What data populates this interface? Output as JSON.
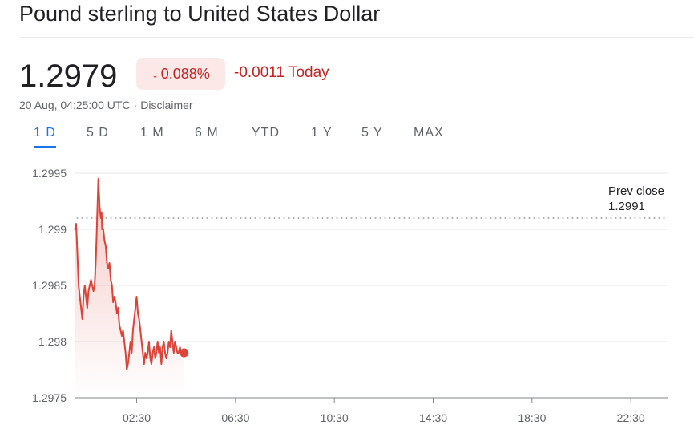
{
  "header": {
    "title": "Pound sterling to United States Dollar"
  },
  "quote": {
    "price": "1.2979",
    "change_percent": "0.088%",
    "change_abs": "-0.0011",
    "change_period": "Today",
    "timestamp": "20 Aug, 04:25:00 UTC",
    "separator": "·",
    "disclaimer": "Disclaimer",
    "down_arrow": "↓"
  },
  "tabs": [
    {
      "label": "1 D",
      "active": true
    },
    {
      "label": "5 D",
      "active": false
    },
    {
      "label": "1 M",
      "active": false
    },
    {
      "label": "6 M",
      "active": false
    },
    {
      "label": "YTD",
      "active": false
    },
    {
      "label": "1 Y",
      "active": false
    },
    {
      "label": "5 Y",
      "active": false
    },
    {
      "label": "MAX",
      "active": false
    }
  ],
  "colors": {
    "line": "#db4437",
    "fill": "#fce8e6",
    "active_tab": "#1a73e8",
    "negative": "#c5221f"
  },
  "chart_data": {
    "type": "area",
    "x_unit": "hours (UTC)",
    "x_range": [
      0,
      24
    ],
    "ylim": [
      1.2975,
      1.2995
    ],
    "y_ticks": [
      1.2975,
      1.298,
      1.2985,
      1.299,
      1.2995
    ],
    "y_tick_labels": [
      "1.2975",
      "1.298",
      "1.2985",
      "1.299",
      "1.2995"
    ],
    "x_ticks": [
      2.5,
      6.5,
      10.5,
      14.5,
      18.5,
      22.5
    ],
    "x_tick_labels": [
      "02:30",
      "06:30",
      "10:30",
      "14:30",
      "18:30",
      "22:30"
    ],
    "grid": true,
    "prev_close": {
      "value": 1.2991,
      "label": "Prev close",
      "value_label": "1.2991"
    },
    "x": [
      0.0,
      0.05,
      0.1,
      0.15,
      0.2,
      0.25,
      0.3,
      0.35,
      0.4,
      0.45,
      0.5,
      0.55,
      0.6,
      0.65,
      0.7,
      0.75,
      0.8,
      0.85,
      0.9,
      0.95,
      1.0,
      1.05,
      1.08,
      1.1,
      1.15,
      1.2,
      1.25,
      1.3,
      1.35,
      1.4,
      1.45,
      1.5,
      1.55,
      1.6,
      1.65,
      1.7,
      1.75,
      1.8,
      1.85,
      1.9,
      1.95,
      2.0,
      2.05,
      2.1,
      2.15,
      2.2,
      2.25,
      2.3,
      2.35,
      2.4,
      2.45,
      2.5,
      2.55,
      2.6,
      2.65,
      2.7,
      2.75,
      2.8,
      2.85,
      2.9,
      2.95,
      3.0,
      3.05,
      3.1,
      3.15,
      3.2,
      3.25,
      3.3,
      3.35,
      3.4,
      3.45,
      3.5,
      3.55,
      3.6,
      3.65,
      3.7,
      3.75,
      3.8,
      3.85,
      3.9,
      3.95,
      4.0,
      4.05,
      4.1,
      4.15,
      4.2,
      4.25,
      4.3,
      4.35,
      4.42
    ],
    "values": [
      1.299,
      1.29905,
      1.2988,
      1.2985,
      1.2984,
      1.2983,
      1.2982,
      1.2984,
      1.2985,
      1.2984,
      1.2983,
      1.29845,
      1.2985,
      1.29855,
      1.2985,
      1.29845,
      1.2985,
      1.29875,
      1.2991,
      1.29945,
      1.2992,
      1.2991,
      1.29915,
      1.299,
      1.299,
      1.2989,
      1.29885,
      1.2987,
      1.29865,
      1.2987,
      1.29855,
      1.2985,
      1.29835,
      1.2984,
      1.29835,
      1.29825,
      1.2983,
      1.29815,
      1.2981,
      1.29805,
      1.2981,
      1.298,
      1.2979,
      1.29775,
      1.2978,
      1.2979,
      1.298,
      1.2979,
      1.2981,
      1.2982,
      1.2983,
      1.2984,
      1.29825,
      1.2982,
      1.2981,
      1.298,
      1.2979,
      1.2978,
      1.2979,
      1.29785,
      1.2979,
      1.298,
      1.29785,
      1.2978,
      1.2979,
      1.29795,
      1.29785,
      1.2979,
      1.298,
      1.2979,
      1.29795,
      1.2978,
      1.29795,
      1.298,
      1.2979,
      1.29785,
      1.2979,
      1.298,
      1.29795,
      1.2981,
      1.298,
      1.2979,
      1.298,
      1.29795,
      1.2979,
      1.2979,
      1.29795,
      1.2979,
      1.2979,
      1.2979
    ]
  }
}
